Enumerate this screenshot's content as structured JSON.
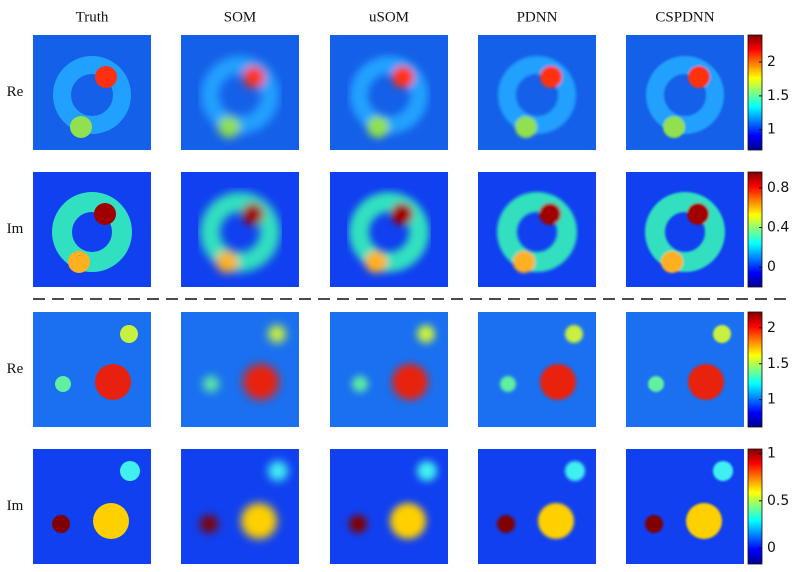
{
  "header": {
    "columns": [
      "Truth",
      "SOM",
      "uSOM",
      "PDNN",
      "CSPDNN"
    ]
  },
  "rows": [
    {
      "label": "Re",
      "colorbar": {
        "lim": [
          0.7,
          2.4
        ],
        "ticks": [
          2,
          1.5,
          1
        ]
      }
    },
    {
      "label": "Im",
      "colorbar": {
        "lim": [
          -0.2,
          0.96
        ],
        "ticks": [
          0.8,
          0.4,
          0
        ]
      }
    },
    {
      "label": "Re",
      "colorbar": {
        "lim": [
          0.62,
          2.22
        ],
        "ticks": [
          2,
          1.5,
          1
        ]
      }
    },
    {
      "label": "Im",
      "colorbar": {
        "lim": [
          -0.17,
          1.05
        ],
        "ticks": [
          1,
          0.5,
          0
        ]
      }
    }
  ]
}
